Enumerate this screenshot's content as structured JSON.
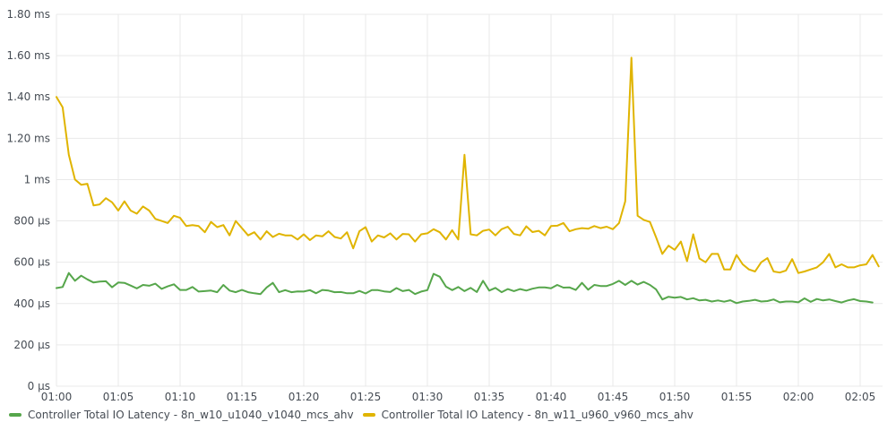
{
  "chart_data": {
    "type": "line",
    "title": "",
    "xlabel": "",
    "ylabel": "",
    "y_unit": "µs",
    "ylim": [
      0,
      1800
    ],
    "x_range": [
      "01:00",
      "02:07"
    ],
    "y_ticks": [
      {
        "value": 0,
        "label": "0 µs"
      },
      {
        "value": 200,
        "label": "200 µs"
      },
      {
        "value": 400,
        "label": "400 µs"
      },
      {
        "value": 600,
        "label": "600 µs"
      },
      {
        "value": 800,
        "label": "800 µs"
      },
      {
        "value": 1000,
        "label": "1 ms"
      },
      {
        "value": 1200,
        "label": "1.20 ms"
      },
      {
        "value": 1400,
        "label": "1.40 ms"
      },
      {
        "value": 1600,
        "label": "1.60 ms"
      },
      {
        "value": 1800,
        "label": "1.80 ms"
      }
    ],
    "x_ticks": [
      "01:00",
      "01:05",
      "01:10",
      "01:15",
      "01:20",
      "01:25",
      "01:30",
      "01:35",
      "01:40",
      "01:45",
      "01:50",
      "01:55",
      "02:00",
      "02:05"
    ],
    "x_step_seconds": 30,
    "grid": true,
    "legend_position": "bottom-left",
    "series": [
      {
        "name": "Controller Total IO Latency - 8n_w10_u1040_v1040_mcs_ahv",
        "color": "#56a64b",
        "values": [
          475,
          480,
          548,
          510,
          535,
          517,
          502,
          506,
          508,
          479,
          502,
          500,
          487,
          473,
          490,
          486,
          496,
          471,
          483,
          493,
          466,
          466,
          480,
          458,
          460,
          463,
          455,
          490,
          463,
          455,
          466,
          455,
          450,
          446,
          478,
          500,
          455,
          465,
          455,
          459,
          458,
          465,
          450,
          466,
          463,
          455,
          456,
          450,
          450,
          461,
          449,
          465,
          465,
          459,
          456,
          475,
          460,
          466,
          446,
          458,
          465,
          544,
          530,
          482,
          465,
          480,
          460,
          476,
          456,
          510,
          463,
          476,
          455,
          470,
          460,
          470,
          463,
          472,
          478,
          478,
          474,
          490,
          477,
          478,
          466,
          500,
          467,
          490,
          485,
          485,
          495,
          510,
          490,
          510,
          492,
          505,
          490,
          468,
          420,
          433,
          428,
          432,
          420,
          426,
          415,
          418,
          410,
          415,
          409,
          416,
          402,
          410,
          413,
          418,
          410,
          412,
          420,
          406,
          410,
          410,
          406,
          425,
          408,
          422,
          415,
          420,
          412,
          405,
          415,
          421,
          412,
          410,
          405
        ]
      },
      {
        "name": "Controller Total IO Latency - 8n_w11_u960_v960_mcs_ahv",
        "color": "#e0b400",
        "values": [
          1400,
          1350,
          1120,
          1000,
          975,
          980,
          875,
          880,
          910,
          890,
          850,
          895,
          850,
          835,
          870,
          850,
          810,
          800,
          790,
          825,
          815,
          775,
          780,
          775,
          745,
          795,
          770,
          780,
          730,
          800,
          765,
          730,
          745,
          710,
          750,
          722,
          738,
          730,
          730,
          710,
          735,
          707,
          730,
          725,
          750,
          722,
          715,
          745,
          667,
          750,
          770,
          700,
          730,
          720,
          740,
          710,
          737,
          735,
          700,
          735,
          740,
          760,
          745,
          710,
          755,
          710,
          1120,
          735,
          730,
          752,
          758,
          730,
          760,
          772,
          737,
          730,
          774,
          746,
          752,
          730,
          775,
          777,
          790,
          750,
          760,
          765,
          762,
          775,
          765,
          772,
          760,
          790,
          895,
          1590,
          825,
          805,
          795,
          720,
          640,
          680,
          660,
          700,
          605,
          735,
          618,
          600,
          640,
          640,
          565,
          565,
          635,
          590,
          565,
          555,
          600,
          620,
          555,
          550,
          560,
          615,
          548,
          555,
          565,
          575,
          600,
          640,
          575,
          590,
          575,
          575,
          585,
          590,
          635,
          580
        ]
      }
    ]
  }
}
